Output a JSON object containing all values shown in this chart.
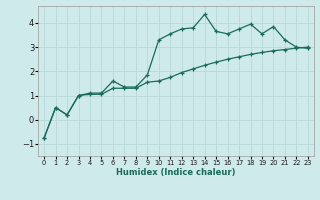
{
  "xlabel": "Humidex (Indice chaleur)",
  "ylabel": "",
  "bg_color": "#ceeaea",
  "grid_color": "#b8d8d8",
  "line_color": "#1a6b5a",
  "xlim": [
    -0.5,
    23.5
  ],
  "ylim": [
    -1.5,
    4.7
  ],
  "xticks": [
    0,
    1,
    2,
    3,
    4,
    5,
    6,
    7,
    8,
    9,
    10,
    11,
    12,
    13,
    14,
    15,
    16,
    17,
    18,
    19,
    20,
    21,
    22,
    23
  ],
  "yticks": [
    -1,
    0,
    1,
    2,
    3,
    4
  ],
  "curve1_x": [
    0,
    1,
    2,
    3,
    4,
    5,
    6,
    7,
    8,
    9,
    10,
    11,
    12,
    13,
    14,
    15,
    16,
    17,
    18,
    19,
    20,
    21,
    22,
    23
  ],
  "curve1_y": [
    -0.75,
    0.5,
    0.2,
    1.0,
    1.1,
    1.1,
    1.6,
    1.35,
    1.35,
    1.85,
    3.3,
    3.55,
    3.75,
    3.8,
    4.35,
    3.65,
    3.55,
    3.75,
    3.95,
    3.55,
    3.85,
    3.3,
    3.0,
    2.95
  ],
  "curve2_x": [
    0,
    1,
    2,
    3,
    4,
    5,
    6,
    7,
    8,
    9,
    10,
    11,
    12,
    13,
    14,
    15,
    16,
    17,
    18,
    19,
    20,
    21,
    22,
    23
  ],
  "curve2_y": [
    -0.75,
    0.5,
    0.2,
    1.0,
    1.05,
    1.05,
    1.3,
    1.3,
    1.3,
    1.55,
    1.6,
    1.75,
    1.95,
    2.1,
    2.25,
    2.38,
    2.5,
    2.6,
    2.7,
    2.78,
    2.85,
    2.9,
    2.96,
    3.0
  ]
}
